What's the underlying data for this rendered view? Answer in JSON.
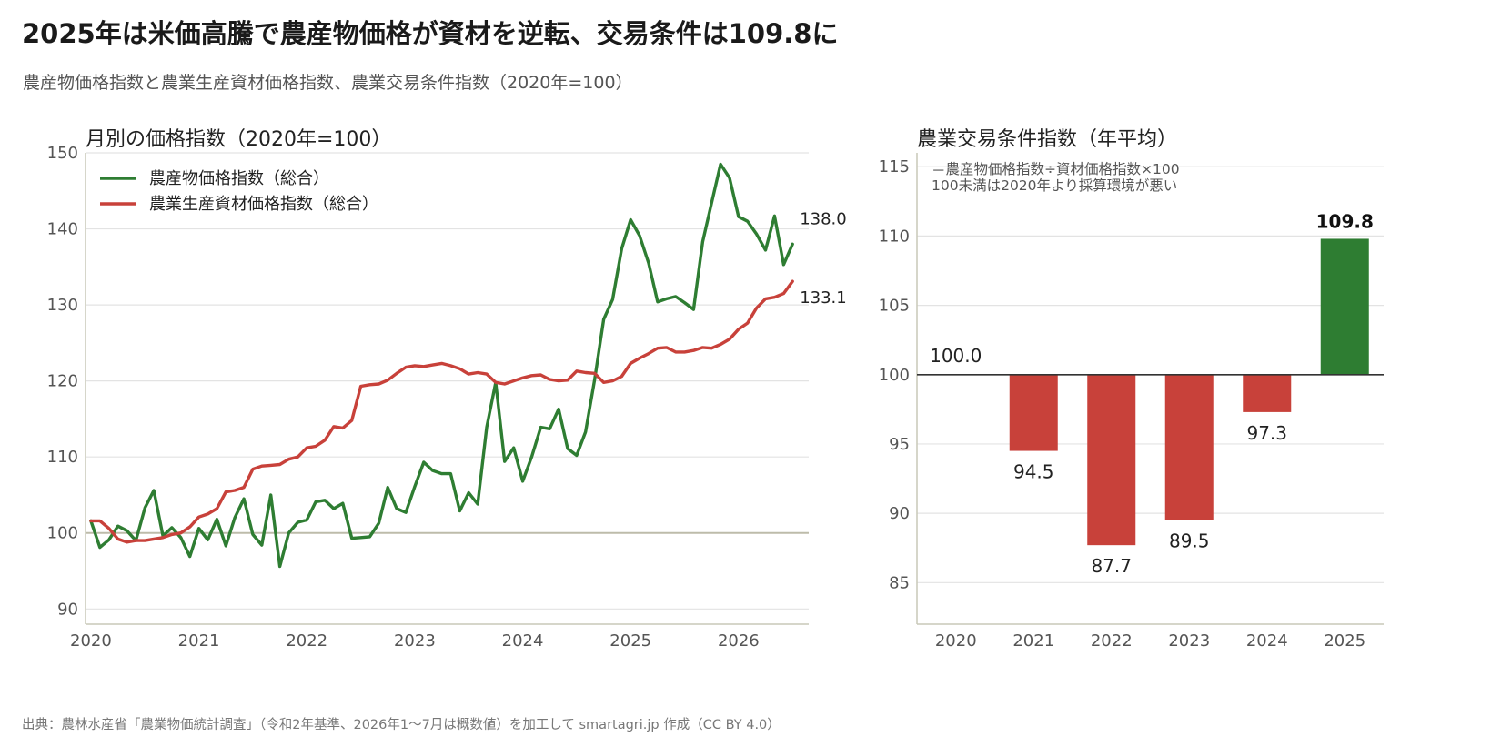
{
  "header": {
    "title": "2025年は米価高騰で農産物価格が資材を逆転、交易条件は109.8に",
    "subtitle": "農産物価格指数と農業生産資材価格指数、農業交易条件指数（2020年=100）"
  },
  "footer": {
    "source": "出典：農林水産省「農業物価統計調査」（令和2年基準、2026年1〜7月は概数値）を加工して smartagri.jp 作成（CC BY 4.0）"
  },
  "chart_data": [
    {
      "type": "line",
      "title": "月別の価格指数（2020年=100）",
      "ylim": [
        88,
        150
      ],
      "yticks": [
        90,
        100,
        110,
        120,
        130,
        140,
        150
      ],
      "xlim": [
        2019.95,
        2026.65
      ],
      "xticks": [
        "2020",
        "2021",
        "2022",
        "2023",
        "2024",
        "2025",
        "2026"
      ],
      "reference_line": 100,
      "grid": "horizontal",
      "legend_position": "top-left",
      "x_unit": "decimal year (month index)",
      "series": [
        {
          "name": "農産物価格指数（総合）",
          "color": "#2e7d32",
          "end_label": "138.0",
          "x": [
            2020.0,
            2020.083,
            2020.167,
            2020.25,
            2020.333,
            2020.417,
            2020.5,
            2020.583,
            2020.667,
            2020.75,
            2020.833,
            2020.917,
            2021.0,
            2021.083,
            2021.167,
            2021.25,
            2021.333,
            2021.417,
            2021.5,
            2021.583,
            2021.667,
            2021.75,
            2021.833,
            2021.917,
            2022.0,
            2022.083,
            2022.167,
            2022.25,
            2022.333,
            2022.417,
            2022.5,
            2022.583,
            2022.667,
            2022.75,
            2022.833,
            2022.917,
            2023.0,
            2023.083,
            2023.167,
            2023.25,
            2023.333,
            2023.417,
            2023.5,
            2023.583,
            2023.667,
            2023.75,
            2023.833,
            2023.917,
            2024.0,
            2024.083,
            2024.167,
            2024.25,
            2024.333,
            2024.417,
            2024.5,
            2024.583,
            2024.667,
            2024.75,
            2024.833,
            2024.917,
            2025.0,
            2025.083,
            2025.167,
            2025.25,
            2025.333,
            2025.417,
            2025.5,
            2025.583,
            2025.667,
            2025.75,
            2025.833,
            2025.917,
            2026.0,
            2026.083,
            2026.167,
            2026.25,
            2026.333,
            2026.417,
            2026.5
          ],
          "values": [
            101.6,
            98.1,
            99.1,
            100.9,
            100.3,
            99.0,
            103.3,
            105.6,
            99.6,
            100.7,
            99.4,
            96.9,
            100.6,
            99.1,
            101.8,
            98.3,
            102.0,
            104.5,
            99.8,
            98.4,
            105.0,
            95.6,
            100.0,
            101.4,
            101.7,
            104.1,
            104.3,
            103.2,
            103.9,
            99.3,
            99.4,
            99.5,
            101.3,
            106.0,
            103.2,
            102.7,
            106.1,
            109.3,
            108.2,
            107.8,
            107.8,
            102.9,
            105.3,
            103.8,
            113.9,
            119.8,
            109.4,
            111.2,
            106.8,
            110.0,
            113.9,
            113.7,
            116.3,
            111.1,
            110.2,
            113.3,
            120.2,
            128.1,
            130.7,
            137.4,
            141.2,
            139.1,
            135.5,
            130.4,
            130.8,
            131.1,
            130.3,
            129.4,
            138.3,
            143.4,
            148.5,
            146.7,
            141.6,
            141.0,
            139.3,
            137.2,
            141.7,
            135.3,
            138.0
          ]
        },
        {
          "name": "農業生産資材価格指数（総合）",
          "color": "#c8413a",
          "end_label": "133.1",
          "x": [
            2020.0,
            2020.083,
            2020.167,
            2020.25,
            2020.333,
            2020.417,
            2020.5,
            2020.583,
            2020.667,
            2020.75,
            2020.833,
            2020.917,
            2021.0,
            2021.083,
            2021.167,
            2021.25,
            2021.333,
            2021.417,
            2021.5,
            2021.583,
            2021.667,
            2021.75,
            2021.833,
            2021.917,
            2022.0,
            2022.083,
            2022.167,
            2022.25,
            2022.333,
            2022.417,
            2022.5,
            2022.583,
            2022.667,
            2022.75,
            2022.833,
            2022.917,
            2023.0,
            2023.083,
            2023.167,
            2023.25,
            2023.333,
            2023.417,
            2023.5,
            2023.583,
            2023.667,
            2023.75,
            2023.833,
            2023.917,
            2024.0,
            2024.083,
            2024.167,
            2024.25,
            2024.333,
            2024.417,
            2024.5,
            2024.583,
            2024.667,
            2024.75,
            2024.833,
            2024.917,
            2025.0,
            2025.083,
            2025.167,
            2025.25,
            2025.333,
            2025.417,
            2025.5,
            2025.583,
            2025.667,
            2025.75,
            2025.833,
            2025.917,
            2026.0,
            2026.083,
            2026.167,
            2026.25,
            2026.333,
            2026.417,
            2026.5
          ],
          "values": [
            101.6,
            101.6,
            100.6,
            99.2,
            98.8,
            99.0,
            99.0,
            99.2,
            99.4,
            99.8,
            100.0,
            100.8,
            102.1,
            102.5,
            103.2,
            105.4,
            105.6,
            106.0,
            108.4,
            108.8,
            108.9,
            109.0,
            109.7,
            110.0,
            111.2,
            111.4,
            112.2,
            114.0,
            113.8,
            114.8,
            119.3,
            119.5,
            119.6,
            120.1,
            121.0,
            121.8,
            122.0,
            121.9,
            122.1,
            122.3,
            122.0,
            121.6,
            120.9,
            121.1,
            120.9,
            119.8,
            119.6,
            120.0,
            120.4,
            120.7,
            120.8,
            120.2,
            120.0,
            120.1,
            121.3,
            121.1,
            121.0,
            119.8,
            120.0,
            120.6,
            122.3,
            123.0,
            123.6,
            124.3,
            124.4,
            123.8,
            123.8,
            124.0,
            124.4,
            124.3,
            124.8,
            125.5,
            126.8,
            127.6,
            129.6,
            130.8,
            131.0,
            131.5,
            133.1
          ]
        }
      ]
    },
    {
      "type": "bar",
      "title": "農業交易条件指数（年平均）",
      "categories": [
        "2020",
        "2021",
        "2022",
        "2023",
        "2024",
        "2025"
      ],
      "values": [
        100.0,
        94.5,
        87.7,
        89.5,
        97.3,
        109.8
      ],
      "value_labels": [
        "100.0",
        "94.5",
        "87.7",
        "89.5",
        "97.3",
        "109.8"
      ],
      "baseline": 100,
      "ylim": [
        82,
        116
      ],
      "yticks": [
        85,
        90,
        95,
        100,
        105,
        110,
        115
      ],
      "grid": "horizontal",
      "colors": {
        "above": "#2e7d32",
        "below": "#c8413a"
      },
      "annotations": [
        "＝農産物価格指数÷資材価格指数×100",
        "100未満は2020年より採算環境が悪い"
      ]
    }
  ]
}
